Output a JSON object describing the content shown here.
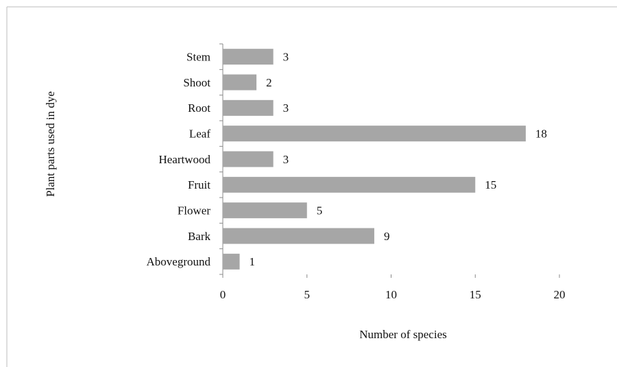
{
  "chart_data": {
    "type": "bar",
    "orientation": "horizontal",
    "xlabel": "Number of species",
    "ylabel": "Plant parts used in dye",
    "categories": [
      "Aboveground",
      "Bark",
      "Flower",
      "Fruit",
      "Heartwood",
      "Leaf",
      "Root",
      "Shoot",
      "Stem"
    ],
    "values": [
      1,
      9,
      5,
      15,
      3,
      18,
      3,
      2,
      3
    ],
    "color": "#a6a6a6",
    "xlim": [
      0,
      20
    ],
    "xticks": [
      0,
      5,
      10,
      15,
      20
    ]
  }
}
